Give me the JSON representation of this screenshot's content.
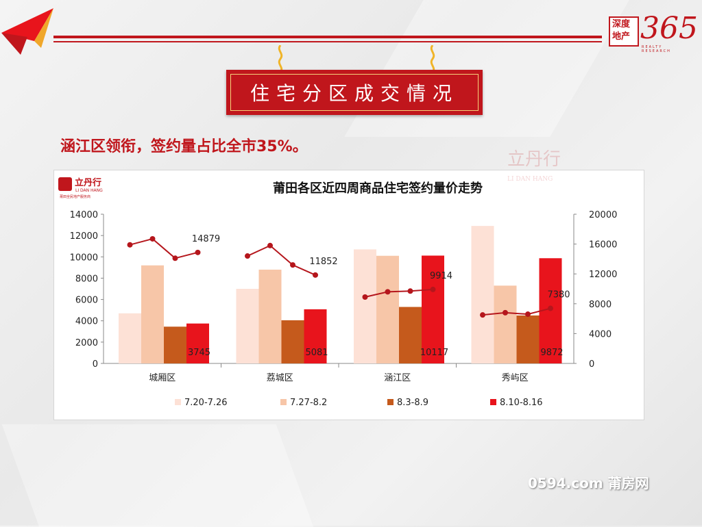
{
  "header": {
    "brand_top": "深度",
    "brand_bottom": "地产",
    "brand_number": "365",
    "brand_sub": "REALTY RESEARCH"
  },
  "banner": {
    "title": "住宅分区成交情况"
  },
  "headline": "涵江区领衔，签约量占比全市35%。",
  "logo": {
    "name": "立丹行",
    "latin": "LI DAN HANG",
    "tagline": "莆田全民地产服务商"
  },
  "watermark": {
    "name": "立丹行",
    "latin": "LI DAN HANG"
  },
  "footer": {
    "site": "0594.com 莆房网"
  },
  "colors": {
    "accent": "#c0161c",
    "series": [
      "#fde1d6",
      "#f7c6a8",
      "#c55a1c",
      "#e8141c"
    ],
    "line": "#b5161c"
  },
  "chart_data": {
    "type": "bar",
    "title": "莆田各区近四周商品住宅签约量价走势",
    "categories": [
      "城厢区",
      "荔城区",
      "涵江区",
      "秀屿区"
    ],
    "series": [
      {
        "name": "7.20-7.26",
        "values": [
          4700,
          7000,
          10700,
          12900
        ]
      },
      {
        "name": "7.27-8.2",
        "values": [
          9200,
          8800,
          10100,
          7300
        ]
      },
      {
        "name": "8.3-8.9",
        "values": [
          3450,
          4050,
          5300,
          4500
        ]
      },
      {
        "name": "8.10-8.16",
        "values": [
          3745,
          5081,
          10117,
          9872
        ]
      }
    ],
    "bar_labels": [
      "3745",
      "5081",
      "10117",
      "9872"
    ],
    "price_lines": [
      {
        "category": "城厢区",
        "values": [
          15900,
          16700,
          14100,
          14879
        ],
        "end_label": "14879"
      },
      {
        "category": "荔城区",
        "values": [
          14400,
          15800,
          13200,
          11852
        ],
        "end_label": "11852"
      },
      {
        "category": "涵江区",
        "values": [
          8900,
          9600,
          9700,
          9914
        ],
        "end_label": "9914"
      },
      {
        "category": "秀屿区",
        "values": [
          6500,
          6800,
          6600,
          7380
        ],
        "end_label": "7380"
      }
    ],
    "ylim": [
      0,
      14000
    ],
    "y_ticks": [
      "0",
      "2000",
      "4000",
      "6000",
      "8000",
      "10000",
      "12000",
      "14000"
    ],
    "y2lim": [
      0,
      20000
    ],
    "y2_ticks": [
      "0",
      "4000",
      "8000",
      "12000",
      "16000",
      "20000"
    ],
    "grid": false,
    "legend_position": "bottom"
  }
}
